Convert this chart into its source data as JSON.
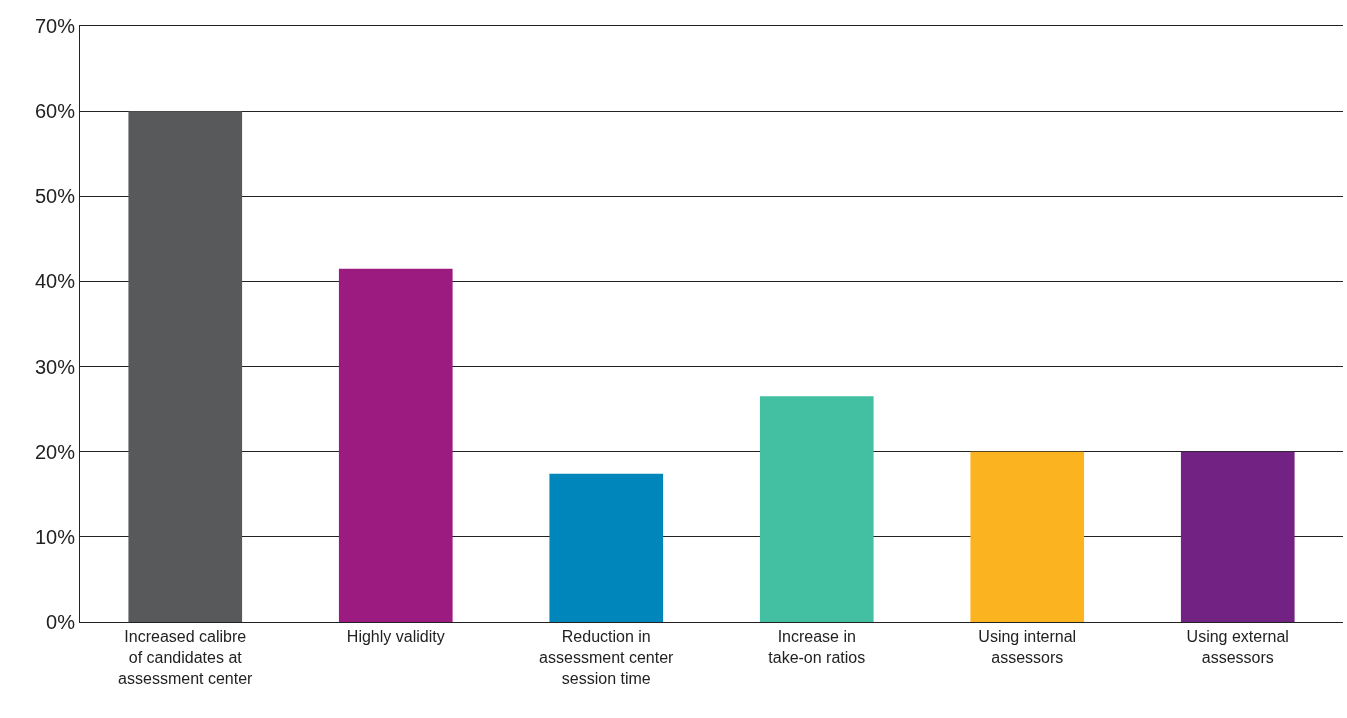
{
  "chart_data": {
    "type": "bar",
    "categories": [
      "Increased calibre of candidates at assessment center",
      "Highly validity",
      "Reduction in assessment center session time",
      "Increase in take-on ratios",
      "Using internal assessors",
      "Using external assessors"
    ],
    "values": [
      60,
      41.5,
      17.4,
      26.5,
      20,
      20
    ],
    "colors": [
      "#58595b",
      "#9b1b80",
      "#0086bb",
      "#43bfa1",
      "#fbb31f",
      "#722282"
    ],
    "ylim": [
      0,
      70
    ],
    "yticks": [
      {
        "value": 0,
        "label": "0%"
      },
      {
        "value": 10,
        "label": "10%"
      },
      {
        "value": 20,
        "label": "20%"
      },
      {
        "value": 30,
        "label": "30%"
      },
      {
        "value": 40,
        "label": "40%"
      },
      {
        "value": 50,
        "label": "50%"
      },
      {
        "value": 60,
        "label": "60%"
      },
      {
        "value": 70,
        "label": "70%"
      }
    ],
    "grid": "y"
  }
}
